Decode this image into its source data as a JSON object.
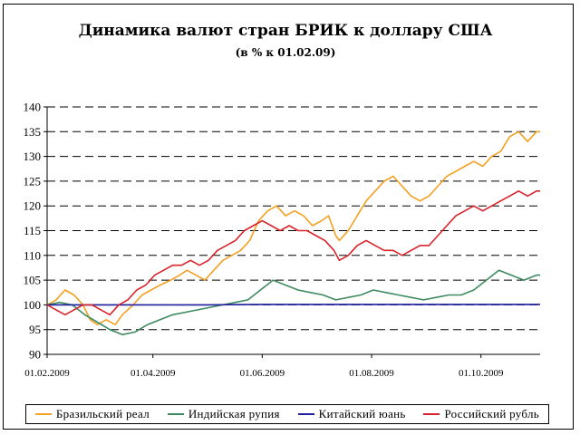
{
  "chart_data": {
    "type": "line",
    "title": "Динамика валют стран БРИК к доллару США",
    "subtitle": "(в % к 01.02.09)",
    "xlabel": "",
    "ylabel": "",
    "ylim": [
      90,
      140
    ],
    "yticks": [
      "90",
      "95",
      "100",
      "105",
      "110",
      "115",
      "120",
      "125",
      "130",
      "135",
      "140"
    ],
    "xticks": [
      {
        "date": "2009-02-01",
        "label": "01.02.2009"
      },
      {
        "date": "2009-04-01",
        "label": "01.04.2009"
      },
      {
        "date": "2009-06-01",
        "label": "01.06.2009"
      },
      {
        "date": "2009-08-01",
        "label": "01.08.2009"
      },
      {
        "date": "2009-10-01",
        "label": "01.10.2009"
      }
    ],
    "xlim": [
      "2009-02-01",
      "2009-11-03"
    ],
    "grid": "horizontal dashed",
    "legend_position": "bottom",
    "series": [
      {
        "name": "Бразильский реал",
        "color": "#f4a021",
        "points": [
          [
            "2009-02-01",
            100
          ],
          [
            "2009-02-06",
            101
          ],
          [
            "2009-02-11",
            103
          ],
          [
            "2009-02-16",
            102
          ],
          [
            "2009-02-21",
            100
          ],
          [
            "2009-02-25",
            97
          ],
          [
            "2009-03-01",
            96
          ],
          [
            "2009-03-06",
            97
          ],
          [
            "2009-03-11",
            96
          ],
          [
            "2009-03-15",
            98
          ],
          [
            "2009-03-21",
            100
          ],
          [
            "2009-03-26",
            102
          ],
          [
            "2009-03-31",
            103
          ],
          [
            "2009-04-05",
            104
          ],
          [
            "2009-04-11",
            105
          ],
          [
            "2009-04-16",
            106
          ],
          [
            "2009-04-20",
            107
          ],
          [
            "2009-04-25",
            106
          ],
          [
            "2009-04-30",
            105
          ],
          [
            "2009-05-05",
            107
          ],
          [
            "2009-05-10",
            109
          ],
          [
            "2009-05-15",
            110
          ],
          [
            "2009-05-20",
            111
          ],
          [
            "2009-05-25",
            113
          ],
          [
            "2009-05-30",
            117
          ],
          [
            "2009-06-04",
            119
          ],
          [
            "2009-06-09",
            120
          ],
          [
            "2009-06-14",
            118
          ],
          [
            "2009-06-19",
            119
          ],
          [
            "2009-06-24",
            118
          ],
          [
            "2009-06-29",
            116
          ],
          [
            "2009-07-04",
            117
          ],
          [
            "2009-07-08",
            118
          ],
          [
            "2009-07-12",
            114
          ],
          [
            "2009-07-14",
            113
          ],
          [
            "2009-07-19",
            115
          ],
          [
            "2009-07-24",
            118
          ],
          [
            "2009-07-29",
            121
          ],
          [
            "2009-08-03",
            123
          ],
          [
            "2009-08-08",
            125
          ],
          [
            "2009-08-13",
            126
          ],
          [
            "2009-08-18",
            124
          ],
          [
            "2009-08-23",
            122
          ],
          [
            "2009-08-28",
            121
          ],
          [
            "2009-09-02",
            122
          ],
          [
            "2009-09-07",
            124
          ],
          [
            "2009-09-12",
            126
          ],
          [
            "2009-09-17",
            127
          ],
          [
            "2009-09-22",
            128
          ],
          [
            "2009-09-27",
            129
          ],
          [
            "2009-10-02",
            128
          ],
          [
            "2009-10-07",
            130
          ],
          [
            "2009-10-12",
            131
          ],
          [
            "2009-10-17",
            134
          ],
          [
            "2009-10-22",
            135
          ],
          [
            "2009-10-27",
            133
          ],
          [
            "2009-11-01",
            135
          ],
          [
            "2009-11-03",
            135
          ]
        ]
      },
      {
        "name": "Индийская рупия",
        "color": "#3f8a60",
        "points": [
          [
            "2009-02-01",
            100
          ],
          [
            "2009-02-08",
            100.5
          ],
          [
            "2009-02-15",
            100
          ],
          [
            "2009-02-22",
            98
          ],
          [
            "2009-03-01",
            96.5
          ],
          [
            "2009-03-08",
            95
          ],
          [
            "2009-03-15",
            94
          ],
          [
            "2009-03-22",
            94.5
          ],
          [
            "2009-03-29",
            96
          ],
          [
            "2009-04-05",
            97
          ],
          [
            "2009-04-12",
            98
          ],
          [
            "2009-04-19",
            98.5
          ],
          [
            "2009-04-26",
            99
          ],
          [
            "2009-05-03",
            99.5
          ],
          [
            "2009-05-10",
            100
          ],
          [
            "2009-05-17",
            100.5
          ],
          [
            "2009-05-24",
            101
          ],
          [
            "2009-05-31",
            103
          ],
          [
            "2009-06-07",
            105
          ],
          [
            "2009-06-14",
            104
          ],
          [
            "2009-06-21",
            103
          ],
          [
            "2009-06-28",
            102.5
          ],
          [
            "2009-07-05",
            102
          ],
          [
            "2009-07-12",
            101
          ],
          [
            "2009-07-19",
            101.5
          ],
          [
            "2009-07-26",
            102
          ],
          [
            "2009-08-02",
            103
          ],
          [
            "2009-08-09",
            102.5
          ],
          [
            "2009-08-16",
            102
          ],
          [
            "2009-08-23",
            101.5
          ],
          [
            "2009-08-30",
            101
          ],
          [
            "2009-09-06",
            101.5
          ],
          [
            "2009-09-13",
            102
          ],
          [
            "2009-09-20",
            102
          ],
          [
            "2009-09-27",
            103
          ],
          [
            "2009-10-04",
            105
          ],
          [
            "2009-10-11",
            107
          ],
          [
            "2009-10-18",
            106
          ],
          [
            "2009-10-25",
            105
          ],
          [
            "2009-11-01",
            106
          ],
          [
            "2009-11-03",
            106
          ]
        ]
      },
      {
        "name": "Китайский юань",
        "color": "#1f1fa0",
        "points": [
          [
            "2009-02-01",
            100
          ],
          [
            "2009-03-01",
            100
          ],
          [
            "2009-04-01",
            100
          ],
          [
            "2009-05-01",
            100
          ],
          [
            "2009-06-01",
            100.1
          ],
          [
            "2009-07-01",
            100.1
          ],
          [
            "2009-08-01",
            100.1
          ],
          [
            "2009-09-01",
            100.1
          ],
          [
            "2009-10-01",
            100.1
          ],
          [
            "2009-11-03",
            100.1
          ]
        ]
      },
      {
        "name": "Российский рубль",
        "color": "#d8232a",
        "points": [
          [
            "2009-02-01",
            100
          ],
          [
            "2009-02-06",
            99
          ],
          [
            "2009-02-11",
            98
          ],
          [
            "2009-02-16",
            99
          ],
          [
            "2009-02-21",
            100
          ],
          [
            "2009-02-26",
            100
          ],
          [
            "2009-03-03",
            99
          ],
          [
            "2009-03-08",
            98
          ],
          [
            "2009-03-13",
            100
          ],
          [
            "2009-03-18",
            101
          ],
          [
            "2009-03-23",
            103
          ],
          [
            "2009-03-28",
            104
          ],
          [
            "2009-04-02",
            106
          ],
          [
            "2009-04-07",
            107
          ],
          [
            "2009-04-12",
            108
          ],
          [
            "2009-04-17",
            108
          ],
          [
            "2009-04-22",
            109
          ],
          [
            "2009-04-27",
            108
          ],
          [
            "2009-05-02",
            109
          ],
          [
            "2009-05-07",
            111
          ],
          [
            "2009-05-12",
            112
          ],
          [
            "2009-05-17",
            113
          ],
          [
            "2009-05-22",
            115
          ],
          [
            "2009-05-27",
            116
          ],
          [
            "2009-06-01",
            117
          ],
          [
            "2009-06-06",
            116
          ],
          [
            "2009-06-11",
            115
          ],
          [
            "2009-06-16",
            116
          ],
          [
            "2009-06-21",
            115
          ],
          [
            "2009-06-26",
            115
          ],
          [
            "2009-07-01",
            114
          ],
          [
            "2009-07-06",
            113
          ],
          [
            "2009-07-11",
            111
          ],
          [
            "2009-07-14",
            109
          ],
          [
            "2009-07-19",
            110
          ],
          [
            "2009-07-24",
            112
          ],
          [
            "2009-07-29",
            113
          ],
          [
            "2009-08-03",
            112
          ],
          [
            "2009-08-08",
            111
          ],
          [
            "2009-08-13",
            111
          ],
          [
            "2009-08-18",
            110
          ],
          [
            "2009-08-23",
            111
          ],
          [
            "2009-08-28",
            112
          ],
          [
            "2009-09-02",
            112
          ],
          [
            "2009-09-07",
            114
          ],
          [
            "2009-09-12",
            116
          ],
          [
            "2009-09-17",
            118
          ],
          [
            "2009-09-22",
            119
          ],
          [
            "2009-09-27",
            120
          ],
          [
            "2009-10-02",
            119
          ],
          [
            "2009-10-07",
            120
          ],
          [
            "2009-10-12",
            121
          ],
          [
            "2009-10-17",
            122
          ],
          [
            "2009-10-22",
            123
          ],
          [
            "2009-10-27",
            122
          ],
          [
            "2009-11-01",
            123
          ],
          [
            "2009-11-03",
            123
          ]
        ]
      }
    ]
  }
}
